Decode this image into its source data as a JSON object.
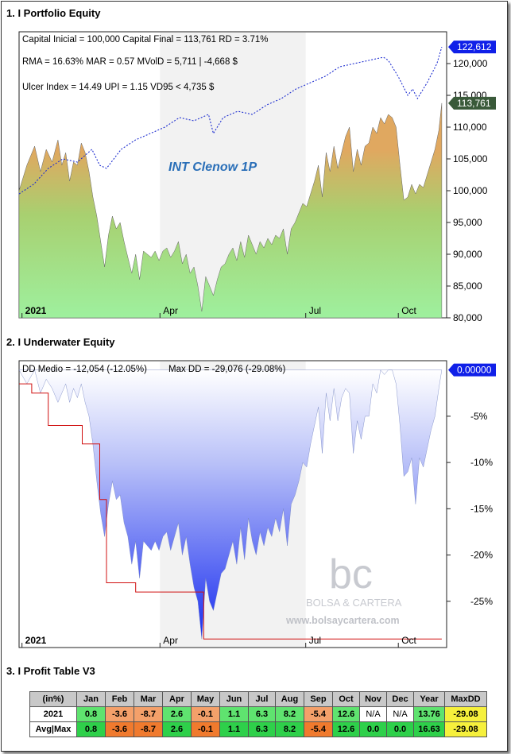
{
  "titles": {
    "equity": "1. I Portfolio Equity",
    "underwater": "2. I Underwater Equity",
    "profit": "3. I Profit Table V3"
  },
  "equity": {
    "info_line1": "Capital Inicial = 100,000  Capital Final = 113,761   RD = 3.71%",
    "info_line2": "RMA = 16.63%   MAR = 0.57   MVolD = 5,711 | -4,668 $",
    "info_line3": "Ulcer Index = 14.49   UPI = 1.15   VD95 < 4,735 $",
    "strategy_label": "INT Clenow 1P",
    "badge_benchmark": "122,612",
    "badge_equity": "113,761"
  },
  "underwater": {
    "info_dd_medio": "DD Medio = -12,054 (-12.05%)",
    "info_max_dd": "Max DD = -29,076 (-29.08%)",
    "badge_current": "0.00000"
  },
  "watermark": {
    "logo_letters": "bc",
    "brand": "BOLSA & CARTERA",
    "url": "www.bolsaycartera.com"
  },
  "chart_data": [
    {
      "type": "area",
      "title": "1. I Portfolio Equity",
      "x_ticks": [
        "2021",
        "Apr",
        "Jul",
        "Oct"
      ],
      "y_ticks": [
        "80,000",
        "85,000",
        "90,000",
        "95,000",
        "100,000",
        "105,000",
        "110,000",
        "115,000",
        "120,000"
      ],
      "ylim": [
        80000,
        125000
      ],
      "series": [
        {
          "name": "",
          "style": "filled-area",
          "x": [
            0,
            0.8,
            1.6,
            2.2,
            2.8,
            3.4,
            4.0,
            4.4,
            4.8,
            5.2,
            5.6,
            6.0,
            6.4,
            6.8,
            7.2,
            7.6,
            8.0,
            8.4,
            8.8,
            9.2,
            9.6,
            10.0,
            10.4,
            10.8,
            11.2,
            11.6,
            12.0,
            12.4,
            12.8,
            13.2,
            13.6,
            14.0,
            14.4,
            14.8,
            15.2,
            15.6,
            16.0,
            16.4,
            16.8,
            17.2,
            17.6,
            18.0,
            18.4,
            18.8,
            19.2,
            19.6,
            20.0,
            20.4,
            20.8,
            21.2,
            21.6,
            22.0,
            22.4,
            22.8,
            23.2,
            23.6,
            24.0,
            24.4,
            24.8,
            25.2,
            25.6,
            26.0,
            26.4,
            26.8,
            27.2,
            27.6,
            28.0,
            28.4,
            28.8,
            29.2,
            29.6,
            30.0,
            30.4,
            30.8,
            31.2,
            31.6,
            32.0,
            32.4,
            32.8,
            33.2,
            33.6,
            34.0,
            34.4,
            34.8,
            35.2,
            35.6,
            36.0,
            36.4,
            36.8,
            37.2,
            37.6,
            38.0,
            38.4,
            38.8,
            39.2,
            39.6,
            40.0,
            40.4,
            40.8,
            41.2,
            41.6,
            42.0,
            42.4,
            42.8,
            43.2,
            43.5
          ],
          "values": [
            100000,
            104000,
            107000,
            103000,
            106500,
            104500,
            108000,
            104000,
            106000,
            101500,
            104500,
            104000,
            107500,
            106000,
            103000,
            99000,
            96000,
            92000,
            88000,
            93000,
            96000,
            94000,
            95000,
            92000,
            89500,
            87000,
            90000,
            86000,
            90500,
            90000,
            89500,
            90500,
            89000,
            90500,
            91000,
            89500,
            90500,
            92000,
            88500,
            90000,
            87000,
            88000,
            85000,
            81000,
            86500,
            85000,
            83500,
            86000,
            88000,
            88500,
            90000,
            91000,
            89000,
            92000,
            89500,
            93000,
            91500,
            90000,
            92000,
            91000,
            92500,
            91500,
            93000,
            92500,
            94000,
            90000,
            94000,
            95000,
            96500,
            98000,
            97500,
            99500,
            101500,
            104000,
            99000,
            106000,
            103000,
            107000,
            103500,
            106000,
            108500,
            110000,
            103000,
            106500,
            104000,
            107000,
            107500,
            110000,
            109000,
            111500,
            110500,
            112000,
            111500,
            110000,
            104000,
            98500,
            99000,
            101000,
            99500,
            101000,
            100500,
            102500,
            104500,
            106500,
            109500,
            113761
          ]
        },
        {
          "name": "",
          "style": "dotted-line",
          "x": [
            0,
            1.5,
            3,
            4.5,
            6,
            7.5,
            8.3,
            9,
            10.5,
            12,
            13.5,
            15,
            16.5,
            18,
            19.5,
            20,
            21,
            22.5,
            24,
            25.5,
            27,
            28.5,
            30,
            31.5,
            33,
            34.5,
            36,
            37.5,
            38,
            39,
            40,
            40.5,
            41,
            42,
            43,
            43.5
          ],
          "values": [
            99500,
            101000,
            103500,
            105000,
            104500,
            106500,
            104000,
            103500,
            106500,
            108000,
            109000,
            110000,
            111500,
            111000,
            112000,
            109000,
            111500,
            112500,
            112000,
            113500,
            114500,
            116000,
            117000,
            118000,
            119500,
            120000,
            120500,
            121000,
            120500,
            118000,
            115000,
            116000,
            114500,
            117000,
            120000,
            122612
          ]
        }
      ]
    },
    {
      "type": "area",
      "title": "2. I Underwater Equity",
      "x_ticks": [
        "2021",
        "Apr",
        "Jul",
        "Oct"
      ],
      "y_ticks": [
        "-5%",
        "-10%",
        "-15%",
        "-20%",
        "-25%"
      ],
      "ylim": [
        -30,
        1
      ],
      "series": [
        {
          "name": "",
          "style": "filled-area",
          "x": [
            0,
            0.8,
            1.6,
            2.2,
            2.8,
            3.4,
            4.0,
            4.4,
            4.8,
            5.2,
            5.6,
            6.0,
            6.4,
            6.8,
            7.2,
            7.6,
            8.0,
            8.4,
            8.8,
            9.2,
            9.6,
            10.0,
            10.4,
            10.8,
            11.2,
            11.6,
            12.0,
            12.4,
            12.8,
            13.2,
            13.6,
            14.0,
            14.4,
            14.8,
            15.2,
            15.6,
            16.0,
            16.4,
            16.8,
            17.2,
            17.6,
            18.0,
            18.4,
            18.8,
            19.2,
            19.6,
            20.0,
            20.4,
            20.8,
            21.2,
            21.6,
            22.0,
            22.4,
            22.8,
            23.2,
            23.6,
            24.0,
            24.4,
            24.8,
            25.2,
            25.6,
            26.0,
            26.4,
            26.8,
            27.2,
            27.6,
            28.0,
            28.4,
            28.8,
            29.2,
            29.6,
            30.0,
            30.4,
            30.8,
            31.2,
            31.6,
            32.0,
            32.4,
            32.8,
            33.2,
            33.6,
            34.0,
            34.4,
            34.8,
            35.2,
            35.6,
            36.0,
            36.4,
            36.8,
            37.2,
            37.6,
            38.0,
            38.4,
            38.8,
            39.2,
            39.6,
            40.0,
            40.4,
            40.8,
            41.2,
            41.6,
            42.0,
            42.4,
            42.8,
            43.2,
            43.5
          ],
          "values": [
            0,
            -1.5,
            0,
            -2.5,
            -1.0,
            -2.0,
            -3.5,
            -2.5,
            -1.5,
            -3.5,
            -2.0,
            -3.0,
            -1.5,
            -3.5,
            -5.0,
            -8.0,
            -12.0,
            -15.5,
            -18.0,
            -14.5,
            -12.0,
            -14.0,
            -13.5,
            -16.5,
            -18.0,
            -21.0,
            -18.5,
            -22.5,
            -18.5,
            -19.0,
            -19.5,
            -18.5,
            -19.5,
            -18.0,
            -17.5,
            -19.5,
            -18.0,
            -16.5,
            -20.0,
            -18.0,
            -21.0,
            -23.5,
            -25.0,
            -29.08,
            -22.5,
            -25.0,
            -26.0,
            -24.0,
            -22.0,
            -21.5,
            -20.0,
            -18.5,
            -21.0,
            -17.0,
            -20.5,
            -16.0,
            -18.5,
            -20.0,
            -17.5,
            -19.0,
            -17.0,
            -18.0,
            -16.0,
            -17.5,
            -15.0,
            -19.0,
            -14.5,
            -13.5,
            -12.0,
            -10.0,
            -10.5,
            -8.0,
            -6.0,
            -4.0,
            -9.0,
            -2.5,
            -5.5,
            -2.0,
            -5.5,
            -3.0,
            -2.0,
            -2.5,
            -9.0,
            -5.5,
            -7.5,
            -5.0,
            -5.0,
            -1.5,
            -2.5,
            0,
            -0.5,
            0,
            0,
            -1.5,
            -6.0,
            -11.5,
            -11.0,
            -9.5,
            -14.5,
            -9.5,
            -10.5,
            -8.5,
            -6.5,
            -5.0,
            -2.0,
            0
          ]
        },
        {
          "name": "",
          "style": "red-step-line",
          "x": [
            0,
            1.3,
            1.3,
            3.0,
            3.0,
            6.5,
            6.5,
            8.3,
            8.3,
            9.0,
            9.0,
            12.0,
            12.0,
            19.0,
            19.0,
            43.5
          ],
          "values": [
            -1.5,
            -1.5,
            -2.5,
            -2.5,
            -6.0,
            -6.0,
            -8.0,
            -8.0,
            -14.0,
            -14.0,
            -23.0,
            -23.0,
            -24.0,
            -24.0,
            -29.08,
            -29.08
          ]
        }
      ]
    },
    {
      "type": "table",
      "title": "3. I Profit Table V3",
      "columns": [
        "(in%)",
        "Jan",
        "Feb",
        "Mar",
        "Apr",
        "May",
        "Jun",
        "Jul",
        "Aug",
        "Sep",
        "Oct",
        "Nov",
        "Dec",
        "Year",
        "MaxDD"
      ],
      "rows": [
        {
          "label": "2021",
          "values": [
            "0.8",
            "-3.6",
            "-8.7",
            "2.6",
            "-0.1",
            "1.1",
            "6.3",
            "8.2",
            "-5.4",
            "12.6",
            "N/A",
            "N/A",
            "13.76",
            "-29.08"
          ]
        },
        {
          "label": "Avg|Max",
          "values": [
            "0.8",
            "-3.6",
            "-8.7",
            "2.6",
            "-0.1",
            "1.1",
            "6.3",
            "8.2",
            "-5.4",
            "12.6",
            "0.0",
            "0.0",
            "16.63",
            "-29.08"
          ]
        }
      ]
    }
  ],
  "colors": {
    "equity_fill_top": "#e0a860",
    "equity_fill_bottom": "#9ef09e",
    "benchmark_line": "#1f2fd0",
    "underwater_fill_top": "#ffffff",
    "underwater_fill_bottom": "#1a2ef0",
    "step_line": "#d01010",
    "badge_blue": "#1020e8",
    "badge_green": "#3a5a3a"
  }
}
